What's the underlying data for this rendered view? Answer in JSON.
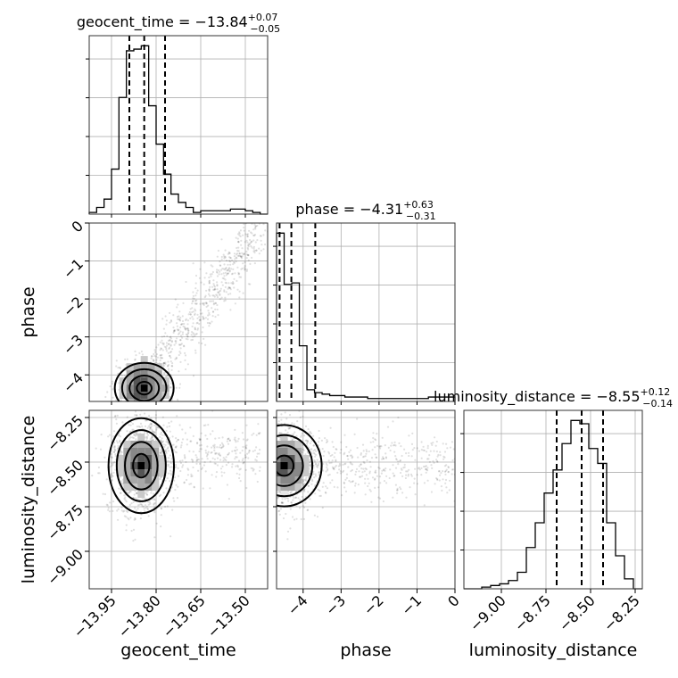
{
  "chart_data": {
    "type": "corner",
    "grid": true,
    "parameters": [
      {
        "name": "geocent_time",
        "label": "geocent_time",
        "range": [
          -14.025,
          -13.425
        ],
        "ticks": [
          -13.95,
          -13.8,
          -13.65,
          -13.5
        ],
        "tick_labels": [
          "−13.95",
          "−13.80",
          "−13.65",
          "−13.50"
        ],
        "title_base": "geocent_time = −13.84",
        "title_sup": "+0.07",
        "title_sub": "−0.05",
        "quantiles": [
          -13.89,
          -13.84,
          -13.77
        ],
        "hist_edges": [
          -14.025,
          -14.0,
          -13.975,
          -13.95,
          -13.925,
          -13.9,
          -13.875,
          -13.85,
          -13.825,
          -13.8,
          -13.775,
          -13.75,
          -13.725,
          -13.7,
          -13.675,
          -13.65,
          -13.625,
          -13.6,
          -13.575,
          -13.55,
          -13.525,
          -13.5,
          -13.475,
          -13.45,
          -13.425
        ],
        "hist_counts": [
          1,
          4,
          9,
          27,
          70,
          98,
          99,
          101,
          65,
          42,
          24,
          12,
          7,
          4,
          1,
          2,
          2,
          2,
          2,
          3,
          3,
          2,
          1,
          0
        ]
      },
      {
        "name": "phase",
        "label": "phase",
        "range": [
          -4.7,
          0
        ],
        "ticks": [
          -4,
          -3,
          -2,
          -1,
          0
        ],
        "tick_labels": [
          "−4",
          "−3",
          "−2",
          "−1",
          "0"
        ],
        "title_base": "phase = −4.31",
        "title_sup": "+0.63",
        "title_sub": "−0.31",
        "quantiles": [
          -4.62,
          -4.31,
          -3.68
        ],
        "hist_edges": [
          -4.7,
          -4.5,
          -4.3,
          -4.1,
          -3.9,
          -3.7,
          -3.5,
          -3.3,
          -3.1,
          -2.9,
          -2.7,
          -2.5,
          -2.3,
          -2.1,
          -1.9,
          -1.7,
          -1.5,
          -1.3,
          -1.1,
          -0.9,
          -0.7,
          -0.5,
          -0.3,
          -0.1,
          0
        ],
        "hist_counts": [
          115,
          80,
          81,
          38,
          8,
          6,
          5,
          4,
          4,
          3,
          3,
          3,
          2,
          2,
          2,
          2,
          2,
          2,
          2,
          2,
          3,
          3,
          3,
          3
        ]
      },
      {
        "name": "luminosity_distance",
        "label": "luminosity_distance",
        "range": [
          -9.21,
          -8.21
        ],
        "ticks": [
          -9.0,
          -8.75,
          -8.5,
          -8.25
        ],
        "tick_labels": [
          "−9.00",
          "−8.75",
          "−8.50",
          "−8.25"
        ],
        "title_base": "luminosity_distance = −8.55",
        "title_sup": "+0.12",
        "title_sub": "−0.14",
        "quantiles": [
          -8.69,
          -8.55,
          -8.43
        ],
        "hist_edges": [
          -9.21,
          -9.16,
          -9.11,
          -9.06,
          -9.01,
          -8.96,
          -8.91,
          -8.86,
          -8.81,
          -8.76,
          -8.71,
          -8.66,
          -8.61,
          -8.56,
          -8.51,
          -8.46,
          -8.41,
          -8.36,
          -8.31,
          -8.26,
          -8.21
        ],
        "hist_counts": [
          0,
          0,
          1,
          2,
          3,
          5,
          10,
          25,
          40,
          58,
          72,
          88,
          102,
          100,
          85,
          76,
          40,
          20,
          6,
          0
        ]
      }
    ],
    "scatter_panels": [
      {
        "x": "geocent_time",
        "y": "phase",
        "core": [
          -13.84,
          -4.35
        ],
        "contour_levels": 4
      },
      {
        "x": "geocent_time",
        "y": "luminosity_distance",
        "core": [
          -13.85,
          -8.52
        ],
        "contour_levels": 4
      },
      {
        "x": "phase",
        "y": "luminosity_distance",
        "core": [
          -4.5,
          -8.52
        ],
        "contour_levels": 4
      }
    ]
  }
}
